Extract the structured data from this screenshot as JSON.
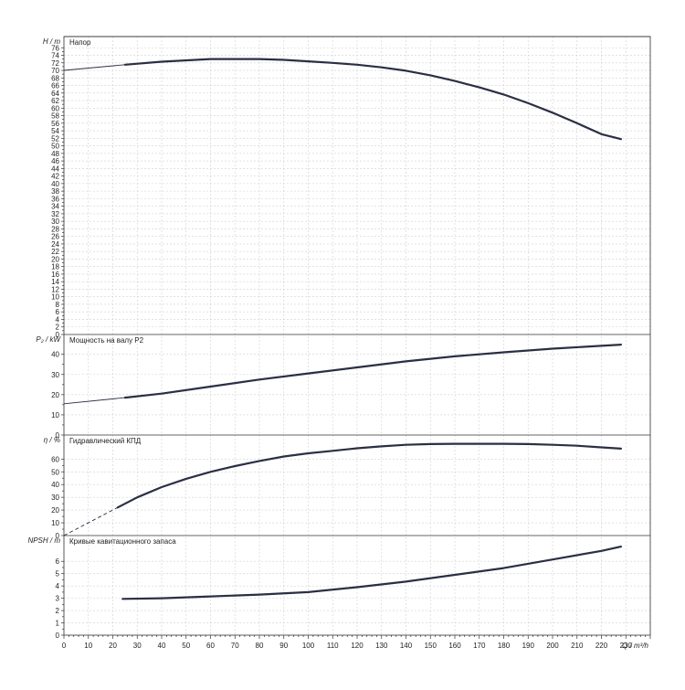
{
  "chart_data": [
    {
      "type": "line",
      "title": "Напор",
      "ylabel": "H / m",
      "xlim": [
        0,
        240
      ],
      "ylim": [
        0,
        78
      ],
      "yticks": [
        0,
        2,
        4,
        6,
        8,
        10,
        12,
        14,
        16,
        18,
        20,
        22,
        24,
        26,
        28,
        30,
        32,
        34,
        36,
        38,
        40,
        42,
        44,
        46,
        48,
        50,
        52,
        54,
        56,
        58,
        60,
        62,
        64,
        66,
        68,
        70,
        72,
        74,
        76
      ],
      "grid": true,
      "extension_style": "solid",
      "extension": {
        "x": [
          0,
          25
        ],
        "y": [
          70.0,
          71.5
        ]
      },
      "series": [
        {
          "x": [
            25,
            40,
            60,
            80,
            90,
            100,
            110,
            120,
            130,
            140,
            150,
            160,
            170,
            180,
            190,
            200,
            210,
            220,
            228
          ],
          "y": [
            71.5,
            72.3,
            73.0,
            73.0,
            72.8,
            72.4,
            72.0,
            71.5,
            70.8,
            69.9,
            68.7,
            67.2,
            65.5,
            63.6,
            61.3,
            58.8,
            56.0,
            53.1,
            51.8
          ]
        }
      ]
    },
    {
      "type": "line",
      "title": "Мощность на валу P2",
      "ylabel": "P₂ / kW",
      "xlim": [
        0,
        240
      ],
      "ylim": [
        0,
        48
      ],
      "yticks": [
        0,
        10,
        20,
        30,
        40
      ],
      "grid": true,
      "extension_style": "solid",
      "extension": {
        "x": [
          0,
          25
        ],
        "y": [
          15.5,
          18.5
        ]
      },
      "series": [
        {
          "x": [
            25,
            40,
            60,
            80,
            100,
            120,
            140,
            160,
            180,
            200,
            220,
            228
          ],
          "y": [
            18.5,
            20.5,
            24.0,
            27.5,
            30.5,
            33.5,
            36.5,
            39.0,
            41.0,
            42.8,
            44.2,
            44.8
          ]
        }
      ]
    },
    {
      "type": "line",
      "title": "Гидравлический КПД",
      "ylabel": "η / %",
      "xlim": [
        0,
        240
      ],
      "ylim": [
        0,
        76
      ],
      "yticks": [
        0,
        10,
        20,
        30,
        40,
        50,
        60
      ],
      "grid": true,
      "extension_style": "dashed",
      "extension": {
        "x": [
          0,
          22
        ],
        "y": [
          0,
          22
        ]
      },
      "series": [
        {
          "x": [
            22,
            30,
            40,
            50,
            60,
            70,
            80,
            90,
            100,
            110,
            120,
            130,
            140,
            150,
            160,
            170,
            180,
            190,
            200,
            210,
            220,
            228
          ],
          "y": [
            22,
            30,
            38,
            44.5,
            50,
            54.5,
            58.5,
            62,
            64.5,
            66.5,
            68.5,
            70,
            71.2,
            71.8,
            72.0,
            72.0,
            72.0,
            71.8,
            71.2,
            70.5,
            69.2,
            68.2
          ]
        }
      ]
    },
    {
      "type": "line",
      "title": "Кривые кавитационного запаса",
      "ylabel": "NPSH / m",
      "xlabel": "Q / m³/h",
      "xlim": [
        0,
        240
      ],
      "ylim": [
        0,
        7.8
      ],
      "yticks": [
        0,
        1,
        2,
        3,
        4,
        5,
        6
      ],
      "xticks": [
        0,
        10,
        20,
        30,
        40,
        50,
        60,
        70,
        80,
        90,
        100,
        110,
        120,
        130,
        140,
        150,
        160,
        170,
        180,
        190,
        200,
        210,
        220,
        230
      ],
      "grid": true,
      "series": [
        {
          "x": [
            24,
            40,
            60,
            80,
            100,
            120,
            140,
            160,
            180,
            200,
            220,
            228
          ],
          "y": [
            2.95,
            3.0,
            3.15,
            3.3,
            3.5,
            3.9,
            4.35,
            4.9,
            5.45,
            6.15,
            6.85,
            7.2
          ]
        }
      ]
    }
  ]
}
